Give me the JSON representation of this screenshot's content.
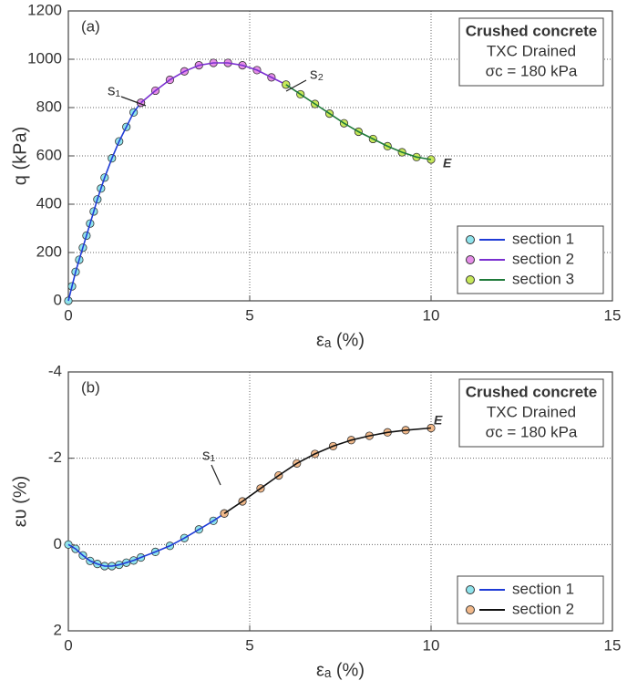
{
  "chart_data": [
    {
      "type": "line",
      "panel_label": "(a)",
      "box_text": [
        "Crushed concrete",
        "TXC Drained",
        "σc = 180 kPa"
      ],
      "annotations": [
        "s₁",
        "s₂",
        "E"
      ],
      "x_label": "εₐ (%)",
      "y_label": "q (kPa)",
      "xlim": [
        0,
        15
      ],
      "xticks": [
        0,
        5,
        10,
        15
      ],
      "ylim": [
        0,
        1200
      ],
      "yticks": [
        0,
        200,
        400,
        600,
        800,
        1000,
        1200
      ],
      "grid": true,
      "legend": "lower right",
      "series": [
        {
          "name": "section 1",
          "color": "#1f3bd6",
          "marker_color": "#8fe3ec",
          "x": [
            0,
            0.1,
            0.2,
            0.3,
            0.4,
            0.5,
            0.6,
            0.7,
            0.8,
            0.9,
            1.0,
            1.2,
            1.4,
            1.6,
            1.8,
            2.0
          ],
          "values": [
            0,
            60,
            120,
            170,
            220,
            270,
            320,
            370,
            420,
            465,
            510,
            590,
            660,
            720,
            780,
            820
          ]
        },
        {
          "name": "section 2",
          "color": "#7a2fd0",
          "marker_color": "#e58ee8",
          "x": [
            2.0,
            2.4,
            2.8,
            3.2,
            3.6,
            4.0,
            4.4,
            4.8,
            5.2,
            5.6,
            6.0
          ],
          "values": [
            820,
            870,
            915,
            950,
            975,
            985,
            985,
            975,
            955,
            925,
            895
          ]
        },
        {
          "name": "section 3",
          "color": "#1f7a3a",
          "marker_color": "#c7e85a",
          "x": [
            6.0,
            6.4,
            6.8,
            7.2,
            7.6,
            8.0,
            8.4,
            8.8,
            9.2,
            9.6,
            10.0
          ],
          "values": [
            895,
            855,
            815,
            775,
            735,
            700,
            670,
            640,
            615,
            595,
            585
          ]
        }
      ]
    },
    {
      "type": "line",
      "panel_label": "(b)",
      "box_text": [
        "Crushed concrete",
        "TXC Drained",
        "σc = 180 kPa"
      ],
      "annotations": [
        "s₁",
        "E"
      ],
      "x_label": "εₐ (%)",
      "y_label": "ευ (%)",
      "xlim": [
        0,
        15
      ],
      "xticks": [
        0,
        5,
        10,
        15
      ],
      "ylim": [
        2,
        -4
      ],
      "yticks": [
        -4,
        -2,
        0,
        2
      ],
      "grid": true,
      "legend": "lower right",
      "series": [
        {
          "name": "section 1",
          "color": "#1f3bd6",
          "marker_color": "#8fe3ec",
          "x": [
            0,
            0.2,
            0.4,
            0.6,
            0.8,
            1.0,
            1.2,
            1.4,
            1.6,
            1.8,
            2.0,
            2.4,
            2.8,
            3.2,
            3.6,
            4.0,
            4.3
          ],
          "values": [
            0,
            0.1,
            0.25,
            0.38,
            0.45,
            0.5,
            0.5,
            0.47,
            0.42,
            0.37,
            0.3,
            0.17,
            0.03,
            -0.15,
            -0.35,
            -0.55,
            -0.72
          ]
        },
        {
          "name": "section 2",
          "color": "#111111",
          "marker_color": "#f2b98a",
          "x": [
            4.3,
            4.8,
            5.3,
            5.8,
            6.3,
            6.8,
            7.3,
            7.8,
            8.3,
            8.8,
            9.3,
            10.0
          ],
          "values": [
            -0.72,
            -1.0,
            -1.3,
            -1.6,
            -1.88,
            -2.1,
            -2.28,
            -2.42,
            -2.52,
            -2.6,
            -2.65,
            -2.7
          ]
        }
      ]
    }
  ]
}
